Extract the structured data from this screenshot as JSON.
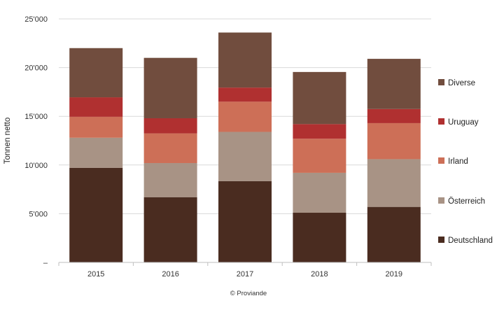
{
  "chart_data": {
    "type": "bar",
    "stacked": true,
    "categories": [
      "2015",
      "2016",
      "2017",
      "2018",
      "2019"
    ],
    "series": [
      {
        "name": "Deutschland",
        "color": "#4a2c20",
        "values": [
          9700,
          6700,
          8350,
          5100,
          5700
        ]
      },
      {
        "name": "Österreich",
        "color": "#a89385",
        "values": [
          3100,
          3500,
          5050,
          4100,
          4900
        ]
      },
      {
        "name": "Irland",
        "color": "#cd6f57",
        "values": [
          2150,
          3050,
          3100,
          3500,
          3700
        ]
      },
      {
        "name": "Uruguay",
        "color": "#b03030",
        "values": [
          2000,
          1550,
          1450,
          1500,
          1450
        ]
      },
      {
        "name": "Diverse",
        "color": "#714d3e",
        "values": [
          5050,
          6200,
          5650,
          5350,
          5150
        ]
      }
    ],
    "ylabel": "Tonnen netto",
    "xlabel": "",
    "ylim": [
      0,
      25000
    ],
    "yticks": [
      {
        "value": 0,
        "label": "–"
      },
      {
        "value": 5000,
        "label": "5'000"
      },
      {
        "value": 10000,
        "label": "10'000"
      },
      {
        "value": 15000,
        "label": "15'000"
      },
      {
        "value": 20000,
        "label": "20'000"
      },
      {
        "value": 25000,
        "label": "25'000"
      }
    ],
    "grid": true,
    "legend_position": "right"
  },
  "credit": "© Proviande"
}
